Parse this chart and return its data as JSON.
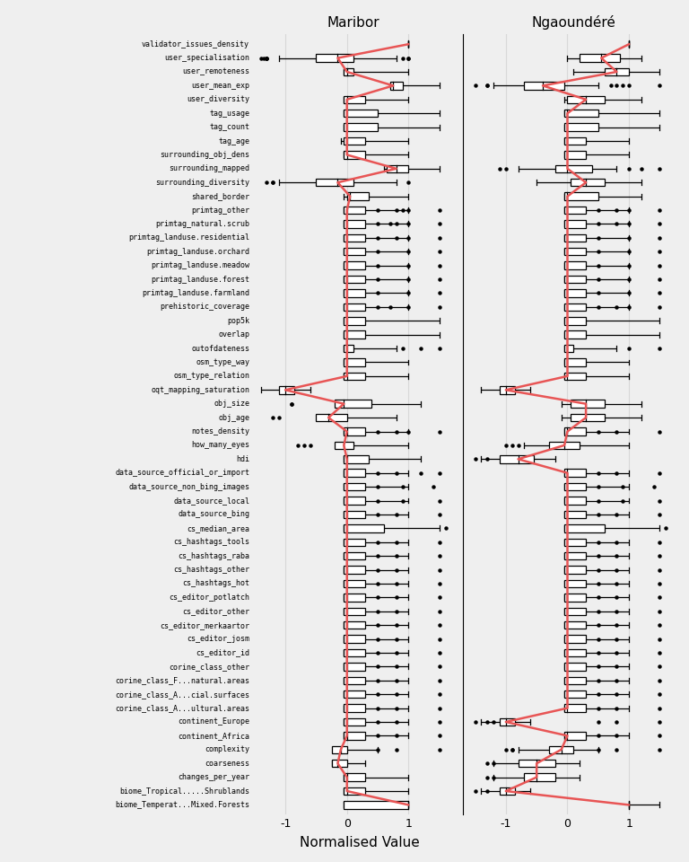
{
  "attributes": [
    "validator_issues_density",
    "user_specialisation",
    "user_remoteness",
    "user_mean_exp",
    "user_diversity",
    "tag_usage",
    "tag_count",
    "tag_age",
    "surrounding_obj_dens",
    "surrounding_mapped",
    "surrounding_diversity",
    "shared_border",
    "primtag_other",
    "primtag_natural.scrub",
    "primtag_landuse.residential",
    "primtag_landuse.orchard",
    "primtag_landuse.meadow",
    "primtag_landuse.forest",
    "primtag_landuse.farmland",
    "prehistoric_coverage",
    "pop5k",
    "overlap",
    "outofdateness",
    "osm_type_way",
    "osm_type_relation",
    "oqt_mapping_saturation",
    "obj_size",
    "obj_age",
    "notes_density",
    "how_many_eyes",
    "hdi",
    "data_source_official_or_import",
    "data_source_non_bing_images",
    "data_source_local",
    "data_source_bing",
    "cs_median_area",
    "cs_hashtags_tools",
    "cs_hashtags_raba",
    "cs_hashtags_other",
    "cs_hashtags_hot",
    "cs_editor_potlatch",
    "cs_editor_other",
    "cs_editor_merkaartor",
    "cs_editor_josm",
    "cs_editor_id",
    "corine_class_other",
    "corine_class_F...natural.areas",
    "corine_class_A...cial.surfaces",
    "corine_class_A...ultural.areas",
    "continent_Europe",
    "continent_Africa",
    "complexity",
    "coarseness",
    "changes_per_year",
    "biome_Tropical.....Shrublands",
    "biome_Temperat...Mixed.Forests"
  ],
  "maribor": {
    "wlow": [
      1.0,
      -1.1,
      -0.05,
      0.7,
      -0.05,
      -0.05,
      -0.05,
      -0.1,
      -0.05,
      0.6,
      -1.1,
      -0.05,
      -0.05,
      -0.05,
      -0.05,
      -0.05,
      -0.05,
      -0.05,
      -0.05,
      -0.05,
      -0.05,
      -0.05,
      -0.05,
      -0.05,
      -0.05,
      -1.4,
      -0.05,
      -0.05,
      -0.05,
      -0.1,
      -0.05,
      -0.05,
      -0.05,
      -0.05,
      -0.05,
      -0.05,
      -0.05,
      -0.05,
      -0.05,
      -0.05,
      -0.05,
      -0.05,
      -0.05,
      -0.05,
      -0.05,
      -0.05,
      -0.05,
      -0.05,
      -0.05,
      -0.05,
      -0.05,
      -0.05,
      -0.25,
      -0.05,
      -0.05,
      -0.05
    ],
    "q1": [
      1.0,
      -0.5,
      -0.05,
      0.7,
      -0.05,
      -0.05,
      -0.05,
      -0.05,
      -0.05,
      0.65,
      -0.5,
      0.0,
      -0.05,
      -0.05,
      -0.05,
      -0.05,
      -0.05,
      -0.05,
      -0.05,
      -0.05,
      -0.05,
      -0.05,
      -0.05,
      -0.05,
      -0.05,
      -1.1,
      -0.2,
      -0.5,
      -0.05,
      -0.2,
      -0.05,
      -0.05,
      -0.05,
      -0.05,
      -0.05,
      -0.05,
      -0.05,
      -0.05,
      -0.05,
      -0.05,
      -0.05,
      -0.05,
      -0.05,
      -0.05,
      -0.05,
      -0.05,
      -0.05,
      -0.05,
      -0.05,
      -0.05,
      -0.05,
      -0.25,
      -0.25,
      -0.05,
      -0.05,
      -0.05
    ],
    "median": [
      1.0,
      -0.15,
      0.0,
      0.75,
      0.0,
      0.0,
      0.0,
      0.0,
      0.0,
      0.8,
      -0.15,
      0.05,
      0.0,
      0.0,
      0.0,
      0.0,
      0.0,
      0.0,
      0.0,
      0.0,
      0.0,
      0.0,
      0.0,
      0.0,
      0.0,
      -1.0,
      -0.05,
      -0.3,
      0.0,
      -0.05,
      0.0,
      0.0,
      0.0,
      0.0,
      0.0,
      0.0,
      0.0,
      0.0,
      0.0,
      0.0,
      0.0,
      0.0,
      0.0,
      0.0,
      0.0,
      0.0,
      0.0,
      0.0,
      0.0,
      0.0,
      0.0,
      -0.1,
      -0.15,
      0.0,
      0.0,
      1.0
    ],
    "q3": [
      1.0,
      0.1,
      0.1,
      0.9,
      0.3,
      0.5,
      0.5,
      0.3,
      0.3,
      1.0,
      0.1,
      0.35,
      0.3,
      0.3,
      0.3,
      0.3,
      0.3,
      0.3,
      0.3,
      0.3,
      0.3,
      0.3,
      0.1,
      0.3,
      0.3,
      -0.85,
      0.4,
      0.0,
      0.3,
      0.1,
      0.35,
      0.3,
      0.3,
      0.3,
      0.3,
      0.6,
      0.3,
      0.3,
      0.3,
      0.3,
      0.3,
      0.3,
      0.3,
      0.3,
      0.3,
      0.3,
      0.3,
      0.3,
      0.3,
      0.3,
      0.3,
      0.0,
      0.0,
      0.3,
      0.3,
      1.0
    ],
    "whigh": [
      1.0,
      0.8,
      1.0,
      1.5,
      1.0,
      1.5,
      1.5,
      1.0,
      1.0,
      1.5,
      0.8,
      1.0,
      1.0,
      1.0,
      1.0,
      1.0,
      1.0,
      1.0,
      1.0,
      1.0,
      1.5,
      1.5,
      0.8,
      1.0,
      1.0,
      -0.6,
      1.2,
      0.8,
      1.0,
      1.0,
      1.2,
      1.0,
      1.0,
      1.0,
      1.0,
      1.5,
      1.0,
      1.0,
      1.0,
      1.0,
      1.0,
      1.0,
      1.0,
      1.0,
      1.0,
      1.0,
      1.0,
      1.0,
      1.0,
      1.0,
      1.0,
      0.5,
      0.3,
      1.0,
      1.0,
      1.0
    ],
    "outliers_low": [
      [],
      [
        -1.4,
        -1.3,
        -1.3,
        -1.3,
        -1.35
      ],
      [],
      [],
      [],
      [],
      [],
      [],
      [],
      [],
      [
        -1.3,
        -1.2,
        -1.2
      ],
      [],
      [],
      [],
      [],
      [],
      [],
      [],
      [],
      [],
      [],
      [],
      [],
      [],
      [],
      [],
      [
        -0.9,
        -0.9
      ],
      [
        -1.2,
        -1.1
      ],
      [],
      [
        -0.8,
        -0.7,
        -0.6
      ],
      [],
      [],
      [],
      [],
      [],
      [],
      [],
      [],
      [],
      [],
      [],
      [],
      [],
      [],
      [],
      [],
      [],
      [],
      [],
      [],
      [],
      [],
      [],
      [],
      [],
      []
    ],
    "outliers_high": [
      [],
      [
        0.9,
        1.0,
        1.0
      ],
      [],
      [],
      [],
      [],
      [],
      [],
      [],
      [],
      [
        1.0
      ],
      [],
      [
        0.5,
        0.8,
        0.9,
        1.0,
        1.5
      ],
      [
        0.5,
        0.7,
        0.8,
        1.0,
        1.5
      ],
      [
        0.5,
        0.8,
        1.0,
        1.5
      ],
      [
        0.5,
        1.0,
        1.5
      ],
      [
        0.5,
        1.0,
        1.5
      ],
      [
        0.5,
        1.0,
        1.5
      ],
      [
        0.5,
        1.0,
        1.5
      ],
      [
        0.5,
        0.7,
        1.0,
        1.5
      ],
      [],
      [],
      [
        0.9,
        1.2,
        1.5
      ],
      [],
      [],
      [],
      [],
      [],
      [
        0.5,
        0.8,
        1.0,
        1.5
      ],
      [],
      [],
      [
        0.5,
        0.8,
        1.2,
        1.5
      ],
      [
        0.5,
        0.9,
        1.4
      ],
      [
        0.5,
        0.9,
        1.5
      ],
      [
        0.5,
        0.8,
        1.5
      ],
      [
        1.6,
        1.8
      ],
      [
        0.5,
        0.8,
        1.5
      ],
      [
        0.5,
        0.8,
        1.5
      ],
      [
        0.5,
        0.8,
        1.5
      ],
      [
        0.5,
        0.8,
        1.5
      ],
      [
        0.5,
        0.8,
        1.5
      ],
      [
        0.5,
        0.8,
        1.5
      ],
      [
        0.5,
        0.8,
        1.5
      ],
      [
        0.5,
        0.8,
        1.5
      ],
      [
        0.5,
        0.8,
        1.5
      ],
      [
        0.5,
        0.8,
        1.5
      ],
      [
        0.5,
        0.8,
        1.5
      ],
      [
        0.5,
        0.8,
        1.5
      ],
      [
        0.5,
        0.8,
        1.5
      ],
      [
        0.5,
        0.8,
        1.5
      ],
      [
        0.5,
        0.8,
        1.5
      ],
      [
        0.5,
        0.8,
        1.5
      ],
      [],
      [],
      [],
      [],
      []
    ]
  },
  "ngaoundere": {
    "wlow": [
      1.0,
      0.0,
      0.1,
      -1.2,
      -0.05,
      -0.05,
      -0.05,
      -0.05,
      -0.05,
      -0.8,
      -0.5,
      -0.05,
      -0.05,
      -0.05,
      -0.05,
      -0.05,
      -0.05,
      -0.05,
      -0.05,
      -0.05,
      -0.05,
      -0.05,
      -0.05,
      -0.05,
      -0.05,
      -1.4,
      -0.1,
      -0.1,
      -0.05,
      -0.7,
      -1.4,
      -0.05,
      -0.05,
      -0.05,
      -0.05,
      -0.05,
      -0.05,
      -0.05,
      -0.05,
      -0.05,
      -0.05,
      -0.05,
      -0.05,
      -0.05,
      -0.05,
      -0.05,
      -0.05,
      -0.05,
      -0.05,
      -1.4,
      -0.05,
      -0.8,
      -1.2,
      -1.2,
      -1.4,
      1.0
    ],
    "q1": [
      1.0,
      0.2,
      0.6,
      -0.7,
      0.0,
      -0.05,
      -0.05,
      -0.05,
      -0.05,
      -0.2,
      0.05,
      -0.05,
      -0.05,
      -0.05,
      -0.05,
      -0.05,
      -0.05,
      -0.05,
      -0.05,
      -0.05,
      -0.05,
      -0.05,
      -0.05,
      -0.05,
      -0.05,
      -1.1,
      0.05,
      0.05,
      -0.05,
      -0.3,
      -1.1,
      -0.05,
      -0.05,
      -0.05,
      -0.05,
      -0.05,
      -0.05,
      -0.05,
      -0.05,
      -0.05,
      -0.05,
      -0.05,
      -0.05,
      -0.05,
      -0.05,
      -0.05,
      -0.05,
      -0.05,
      -0.05,
      -1.1,
      -0.05,
      -0.3,
      -0.8,
      -0.7,
      -1.1,
      1.0
    ],
    "median": [
      1.0,
      0.55,
      0.8,
      -0.4,
      0.3,
      0.0,
      0.0,
      0.0,
      0.0,
      0.0,
      0.3,
      0.0,
      0.0,
      0.0,
      0.0,
      0.0,
      0.0,
      0.0,
      0.0,
      0.0,
      0.0,
      0.0,
      0.0,
      0.0,
      0.0,
      -1.0,
      0.3,
      0.3,
      0.0,
      -0.05,
      -0.8,
      0.0,
      0.0,
      0.0,
      0.0,
      0.0,
      0.0,
      0.0,
      0.0,
      0.0,
      0.0,
      0.0,
      0.0,
      0.0,
      0.0,
      0.0,
      0.0,
      0.0,
      0.0,
      -1.0,
      0.0,
      -0.1,
      -0.5,
      -0.5,
      -1.0,
      1.0
    ],
    "q3": [
      1.0,
      0.85,
      1.0,
      -0.05,
      0.6,
      0.5,
      0.5,
      0.3,
      0.3,
      0.4,
      0.6,
      0.5,
      0.3,
      0.3,
      0.3,
      0.3,
      0.3,
      0.3,
      0.3,
      0.3,
      0.3,
      0.3,
      0.1,
      0.3,
      0.3,
      -0.85,
      0.6,
      0.6,
      0.3,
      0.2,
      -0.55,
      0.3,
      0.3,
      0.3,
      0.3,
      0.6,
      0.3,
      0.3,
      0.3,
      0.3,
      0.3,
      0.3,
      0.3,
      0.3,
      0.3,
      0.3,
      0.3,
      0.3,
      0.3,
      -0.85,
      0.3,
      0.1,
      -0.2,
      -0.2,
      -0.85,
      1.0
    ],
    "whigh": [
      1.0,
      1.2,
      1.5,
      0.5,
      1.2,
      1.5,
      1.5,
      1.0,
      1.0,
      0.8,
      1.2,
      1.2,
      1.0,
      1.0,
      1.0,
      1.0,
      1.0,
      1.0,
      1.0,
      1.0,
      1.5,
      1.5,
      0.8,
      1.0,
      1.0,
      -0.6,
      1.2,
      1.2,
      1.0,
      1.0,
      -0.2,
      1.0,
      1.0,
      1.0,
      1.0,
      1.5,
      1.0,
      1.0,
      1.0,
      1.0,
      1.0,
      1.0,
      1.0,
      1.0,
      1.0,
      1.0,
      1.0,
      1.0,
      1.0,
      -0.6,
      1.0,
      0.5,
      0.2,
      0.2,
      -0.6,
      1.5
    ],
    "outliers_low": [
      [],
      [],
      [],
      [
        -1.5,
        -1.3,
        -1.3
      ],
      [],
      [],
      [],
      [],
      [],
      [
        -1.0,
        -1.1
      ],
      [],
      [],
      [],
      [],
      [],
      [],
      [],
      [],
      [],
      [],
      [],
      [],
      [],
      [],
      [],
      [],
      [],
      [],
      [],
      [
        -1.0,
        -0.9,
        -0.8
      ],
      [
        -1.5,
        -1.3
      ],
      [],
      [],
      [],
      [],
      [],
      [],
      [],
      [],
      [],
      [],
      [],
      [],
      [],
      [],
      [],
      [],
      [],
      [],
      [
        -1.5,
        -1.3,
        -1.2
      ],
      [],
      [
        -1.0,
        -0.9,
        -0.9
      ],
      [
        -1.3,
        -1.2
      ],
      [
        -1.3,
        -1.2
      ],
      [
        -1.5,
        -1.3
      ],
      []
    ],
    "outliers_high": [
      [],
      [],
      [],
      [
        0.7,
        0.8,
        0.9,
        1.0,
        1.5
      ],
      [],
      [],
      [],
      [],
      [],
      [
        1.0,
        1.2,
        1.5
      ],
      [],
      [],
      [
        0.5,
        0.8,
        1.0,
        1.5
      ],
      [
        0.5,
        0.8,
        1.0,
        1.5
      ],
      [
        0.5,
        1.0,
        1.5
      ],
      [
        0.5,
        1.0,
        1.5
      ],
      [
        0.5,
        1.0,
        1.5
      ],
      [
        0.5,
        1.0,
        1.5
      ],
      [
        0.5,
        1.0,
        1.5
      ],
      [
        0.5,
        0.8,
        1.0,
        1.5
      ],
      [],
      [],
      [
        1.0,
        1.5
      ],
      [],
      [],
      [],
      [],
      [],
      [
        0.5,
        0.8,
        1.5
      ],
      [],
      [],
      [
        0.5,
        0.8,
        1.5
      ],
      [
        0.5,
        0.9,
        1.4
      ],
      [
        0.5,
        0.9,
        1.5
      ],
      [
        0.5,
        0.8,
        1.5
      ],
      [
        1.6,
        1.8
      ],
      [
        0.5,
        0.8,
        1.5
      ],
      [
        0.5,
        0.8,
        1.5
      ],
      [
        0.5,
        0.8,
        1.5
      ],
      [
        0.5,
        0.8,
        1.5
      ],
      [
        0.5,
        0.8,
        1.5
      ],
      [
        0.5,
        0.8,
        1.5
      ],
      [
        0.5,
        0.8,
        1.5
      ],
      [
        0.5,
        0.8,
        1.5
      ],
      [
        0.5,
        0.8,
        1.5
      ],
      [
        0.5,
        0.8,
        1.5
      ],
      [
        0.5,
        0.8,
        1.5
      ],
      [
        0.5,
        0.8,
        1.5
      ],
      [
        0.5,
        0.8,
        1.5
      ],
      [
        0.5,
        0.8,
        1.5
      ],
      [
        0.5,
        0.8,
        1.5
      ],
      [
        0.5,
        0.8,
        1.5
      ],
      [],
      [],
      [],
      [],
      []
    ]
  },
  "title1": "Maribor",
  "title2": "Ngaoundéré",
  "xlabel": "Normalised Value",
  "xticks": [
    -1,
    0,
    1
  ],
  "median_line_color": "#e85555",
  "bg_color": "#efefef",
  "grid_color": "#d8d8d8",
  "figsize": [
    7.68,
    9.6
  ],
  "dpi": 100
}
